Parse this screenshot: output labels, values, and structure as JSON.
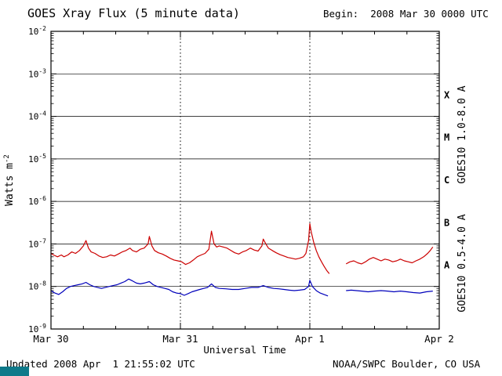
{
  "header": {
    "title": "GOES Xray Flux (5 minute data)",
    "begin_label": "Begin:  2008 Mar 30 0000 UTC"
  },
  "footer": {
    "updated": "Updated 2008 Apr  1 21:55:02 UTC",
    "credit": "NOAA/SWPC Boulder, CO USA",
    "corner_color": "#0f7a8a"
  },
  "chart_data": {
    "type": "line",
    "title": "GOES Xray Flux (5 minute data)",
    "xlabel": "Universal Time",
    "ylabel": "Watts m-2",
    "ylabel_base": "Watts m",
    "ylabel_sup": "-2",
    "grid": "horizontal-decade-lines",
    "legend_position": "right-rotated",
    "x_axis": {
      "start": "2008 Mar 30 0000 UTC",
      "span_days": 3,
      "minor_tick_days": 0.25,
      "day_divider_days": [
        1,
        2
      ],
      "ticks": [
        {
          "label": "Mar 30",
          "day": 0
        },
        {
          "label": "Mar 31",
          "day": 1
        },
        {
          "label": "Apr 1",
          "day": 2
        },
        {
          "label": "Apr 2",
          "day": 3
        }
      ]
    },
    "y_axis": {
      "scale": "log",
      "min": 1e-09,
      "max": 0.01,
      "tick_exponents": [
        -2,
        -3,
        -4,
        -5,
        -6,
        -7,
        -8,
        -9
      ]
    },
    "flare_classes": [
      {
        "label": "X",
        "exp_mid": -3.5
      },
      {
        "label": "M",
        "exp_mid": -4.5
      },
      {
        "label": "C",
        "exp_mid": -5.5
      },
      {
        "label": "B",
        "exp_mid": -6.5
      },
      {
        "label": "A",
        "exp_mid": -7.5
      }
    ],
    "series": [
      {
        "name": "GOES10 1.0-8.0 A",
        "color": "#cc0000",
        "points": [
          [
            0.0,
            6e-08
          ],
          [
            0.02,
            5.5e-08
          ],
          [
            0.05,
            5e-08
          ],
          [
            0.08,
            5.5e-08
          ],
          [
            0.1,
            5e-08
          ],
          [
            0.13,
            5.5e-08
          ],
          [
            0.16,
            6.5e-08
          ],
          [
            0.19,
            6e-08
          ],
          [
            0.22,
            7e-08
          ],
          [
            0.25,
            9e-08
          ],
          [
            0.27,
            1.2e-07
          ],
          [
            0.29,
            8e-08
          ],
          [
            0.31,
            6.5e-08
          ],
          [
            0.34,
            6e-08
          ],
          [
            0.37,
            5.2e-08
          ],
          [
            0.4,
            4.8e-08
          ],
          [
            0.43,
            5e-08
          ],
          [
            0.46,
            5.5e-08
          ],
          [
            0.49,
            5.2e-08
          ],
          [
            0.52,
            5.8e-08
          ],
          [
            0.55,
            6.5e-08
          ],
          [
            0.58,
            7e-08
          ],
          [
            0.61,
            8e-08
          ],
          [
            0.63,
            7e-08
          ],
          [
            0.66,
            6.5e-08
          ],
          [
            0.69,
            7.5e-08
          ],
          [
            0.72,
            8e-08
          ],
          [
            0.75,
            1e-07
          ],
          [
            0.76,
            1.5e-07
          ],
          [
            0.78,
            9e-08
          ],
          [
            0.8,
            7e-08
          ],
          [
            0.83,
            6.2e-08
          ],
          [
            0.86,
            5.8e-08
          ],
          [
            0.89,
            5.2e-08
          ],
          [
            0.92,
            4.6e-08
          ],
          [
            0.95,
            4.2e-08
          ],
          [
            0.98,
            4e-08
          ],
          [
            1.01,
            3.8e-08
          ],
          [
            1.04,
            3.3e-08
          ],
          [
            1.07,
            3.6e-08
          ],
          [
            1.1,
            4.2e-08
          ],
          [
            1.13,
            5e-08
          ],
          [
            1.16,
            5.5e-08
          ],
          [
            1.19,
            6e-08
          ],
          [
            1.22,
            7.5e-08
          ],
          [
            1.24,
            2e-07
          ],
          [
            1.26,
            1e-07
          ],
          [
            1.28,
            8.5e-08
          ],
          [
            1.3,
            9e-08
          ],
          [
            1.33,
            8.5e-08
          ],
          [
            1.36,
            8e-08
          ],
          [
            1.39,
            7e-08
          ],
          [
            1.42,
            6.2e-08
          ],
          [
            1.45,
            5.8e-08
          ],
          [
            1.48,
            6.5e-08
          ],
          [
            1.51,
            7e-08
          ],
          [
            1.54,
            8e-08
          ],
          [
            1.57,
            7.2e-08
          ],
          [
            1.6,
            6.8e-08
          ],
          [
            1.63,
            9e-08
          ],
          [
            1.64,
            1.3e-07
          ],
          [
            1.66,
            1e-07
          ],
          [
            1.68,
            8e-08
          ],
          [
            1.71,
            7e-08
          ],
          [
            1.74,
            6.2e-08
          ],
          [
            1.77,
            5.6e-08
          ],
          [
            1.8,
            5.2e-08
          ],
          [
            1.83,
            4.8e-08
          ],
          [
            1.86,
            4.6e-08
          ],
          [
            1.89,
            4.4e-08
          ],
          [
            1.92,
            4.6e-08
          ],
          [
            1.95,
            5e-08
          ],
          [
            1.97,
            6e-08
          ],
          [
            1.99,
            1.2e-07
          ],
          [
            2.0,
            3e-07
          ],
          [
            2.01,
            2e-07
          ],
          [
            2.03,
            1.1e-07
          ],
          [
            2.05,
            7e-08
          ],
          [
            2.07,
            5e-08
          ],
          [
            2.09,
            3.8e-08
          ],
          [
            2.11,
            3e-08
          ],
          [
            2.13,
            2.4e-08
          ],
          [
            2.15,
            2e-08
          ],
          null,
          [
            2.28,
            3.4e-08
          ],
          [
            2.31,
            3.8e-08
          ],
          [
            2.34,
            4e-08
          ],
          [
            2.37,
            3.6e-08
          ],
          [
            2.4,
            3.4e-08
          ],
          [
            2.43,
            3.8e-08
          ],
          [
            2.46,
            4.4e-08
          ],
          [
            2.49,
            4.8e-08
          ],
          [
            2.52,
            4.4e-08
          ],
          [
            2.55,
            4e-08
          ],
          [
            2.58,
            4.4e-08
          ],
          [
            2.61,
            4.2e-08
          ],
          [
            2.64,
            3.8e-08
          ],
          [
            2.67,
            4e-08
          ],
          [
            2.7,
            4.4e-08
          ],
          [
            2.73,
            4e-08
          ],
          [
            2.76,
            3.8e-08
          ],
          [
            2.79,
            3.6e-08
          ],
          [
            2.82,
            4e-08
          ],
          [
            2.85,
            4.4e-08
          ],
          [
            2.88,
            5e-08
          ],
          [
            2.91,
            6e-08
          ],
          [
            2.93,
            7e-08
          ],
          [
            2.95,
            8.5e-08
          ]
        ]
      },
      {
        "name": "GOES10 0.5-4.0 A",
        "color": "#0000bb",
        "points": [
          [
            0.0,
            8e-09
          ],
          [
            0.03,
            7e-09
          ],
          [
            0.06,
            6.5e-09
          ],
          [
            0.09,
            7.5e-09
          ],
          [
            0.12,
            9e-09
          ],
          [
            0.15,
            1e-08
          ],
          [
            0.18,
            1.05e-08
          ],
          [
            0.21,
            1.1e-08
          ],
          [
            0.24,
            1.15e-08
          ],
          [
            0.27,
            1.25e-08
          ],
          [
            0.3,
            1.1e-08
          ],
          [
            0.33,
            1e-08
          ],
          [
            0.36,
            9.5e-09
          ],
          [
            0.39,
            9e-09
          ],
          [
            0.42,
            9.5e-09
          ],
          [
            0.45,
            1e-08
          ],
          [
            0.48,
            1.05e-08
          ],
          [
            0.51,
            1.1e-08
          ],
          [
            0.54,
            1.2e-08
          ],
          [
            0.57,
            1.3e-08
          ],
          [
            0.6,
            1.5e-08
          ],
          [
            0.63,
            1.35e-08
          ],
          [
            0.66,
            1.2e-08
          ],
          [
            0.69,
            1.15e-08
          ],
          [
            0.72,
            1.2e-08
          ],
          [
            0.76,
            1.3e-08
          ],
          [
            0.79,
            1.1e-08
          ],
          [
            0.82,
            1e-08
          ],
          [
            0.85,
            9.5e-09
          ],
          [
            0.88,
            9e-09
          ],
          [
            0.91,
            8.5e-09
          ],
          [
            0.94,
            7.5e-09
          ],
          [
            0.97,
            7e-09
          ],
          [
            1.0,
            6.8e-09
          ],
          [
            1.03,
            6.2e-09
          ],
          [
            1.06,
            6.8e-09
          ],
          [
            1.09,
            7.5e-09
          ],
          [
            1.12,
            8e-09
          ],
          [
            1.15,
            8.5e-09
          ],
          [
            1.18,
            9e-09
          ],
          [
            1.21,
            9.5e-09
          ],
          [
            1.24,
            1.15e-08
          ],
          [
            1.27,
            9.5e-09
          ],
          [
            1.3,
            9e-09
          ],
          [
            1.35,
            8.8e-09
          ],
          [
            1.4,
            8.5e-09
          ],
          [
            1.45,
            8.5e-09
          ],
          [
            1.5,
            9e-09
          ],
          [
            1.55,
            9.5e-09
          ],
          [
            1.6,
            9.5e-09
          ],
          [
            1.64,
            1.05e-08
          ],
          [
            1.68,
            9.5e-09
          ],
          [
            1.72,
            9e-09
          ],
          [
            1.76,
            8.8e-09
          ],
          [
            1.8,
            8.5e-09
          ],
          [
            1.84,
            8.2e-09
          ],
          [
            1.88,
            8e-09
          ],
          [
            1.92,
            8.2e-09
          ],
          [
            1.96,
            8.5e-09
          ],
          [
            1.99,
            1e-08
          ],
          [
            2.0,
            1.4e-08
          ],
          [
            2.02,
            1e-08
          ],
          [
            2.05,
            8e-09
          ],
          [
            2.08,
            7e-09
          ],
          [
            2.11,
            6.5e-09
          ],
          [
            2.14,
            6e-09
          ],
          null,
          [
            2.28,
            8e-09
          ],
          [
            2.32,
            8.2e-09
          ],
          [
            2.36,
            8e-09
          ],
          [
            2.4,
            7.8e-09
          ],
          [
            2.45,
            7.5e-09
          ],
          [
            2.5,
            7.8e-09
          ],
          [
            2.55,
            8e-09
          ],
          [
            2.6,
            7.8e-09
          ],
          [
            2.65,
            7.5e-09
          ],
          [
            2.7,
            7.8e-09
          ],
          [
            2.75,
            7.5e-09
          ],
          [
            2.8,
            7.2e-09
          ],
          [
            2.85,
            7e-09
          ],
          [
            2.9,
            7.5e-09
          ],
          [
            2.95,
            7.8e-09
          ]
        ]
      }
    ]
  }
}
